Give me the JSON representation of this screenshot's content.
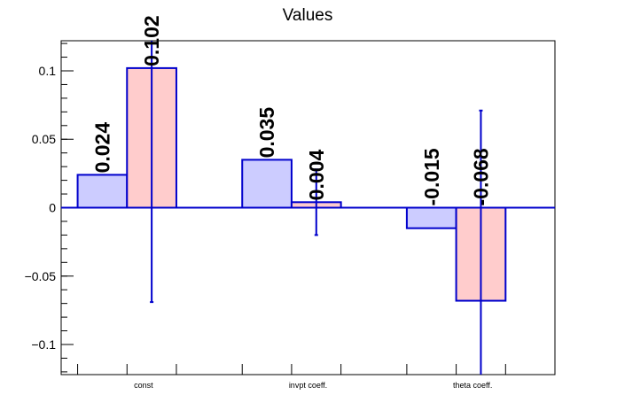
{
  "chart_data": {
    "type": "bar",
    "title": "Values",
    "xlabel": "",
    "ylabel": "",
    "ylim": [
      -0.122,
      0.122
    ],
    "yticks": [
      -0.1,
      -0.05,
      0,
      0.05,
      0.1
    ],
    "ytick_labels": [
      "−0.1",
      "−0.05",
      "0",
      "0.05",
      "0.1"
    ],
    "categories": [
      "const",
      "invpt coeff.",
      "theta coeff."
    ],
    "series": [
      {
        "values": [
          0.024,
          0.035,
          -0.015
        ],
        "labels": [
          "0.024",
          "0.035",
          "-0.015"
        ],
        "errors": [
          null,
          null,
          null
        ],
        "fill": "#ccccff",
        "stroke": "#0000cc"
      },
      {
        "values": [
          0.102,
          0.004,
          -0.068
        ],
        "labels": [
          "0.102",
          "0.004",
          "-0.068"
        ],
        "errors": [
          0.171,
          0.024,
          0.139
        ],
        "fill": "#ffcccc",
        "stroke": "#0000cc"
      }
    ],
    "grid": false,
    "legend": "none"
  }
}
